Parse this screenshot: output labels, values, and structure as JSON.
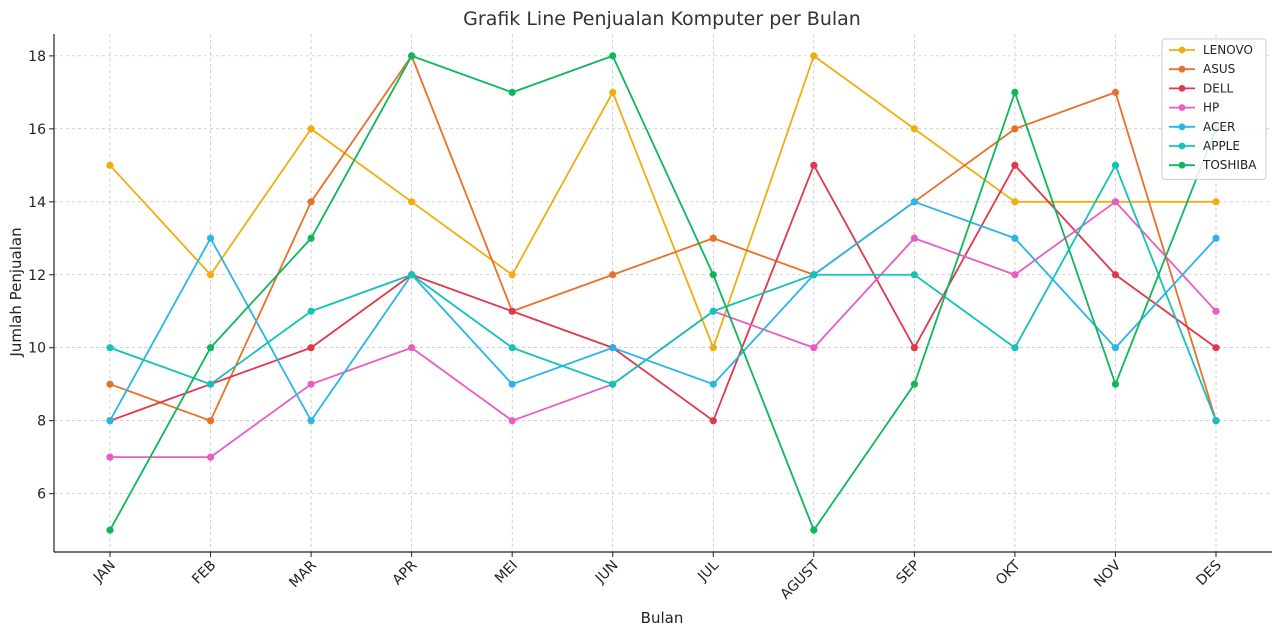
{
  "chart_data": {
    "type": "line",
    "title": "Grafik Line Penjualan Komputer per Bulan",
    "xlabel": "Bulan",
    "ylabel": "Jumlah Penjualan",
    "categories": [
      "JAN",
      "FEB",
      "MAR",
      "APR",
      "MEI",
      "JUN",
      "JUL",
      "AGUST",
      "SEP",
      "OKT",
      "NOV",
      "DES"
    ],
    "ylim": [
      4.4,
      18.6
    ],
    "yticks": [
      6,
      8,
      10,
      12,
      14,
      16,
      18
    ],
    "grid": true,
    "legend_position": "top-right",
    "series": [
      {
        "name": "LENOVO",
        "color": "#f0ad0f",
        "values": [
          15,
          12,
          16,
          14,
          12,
          17,
          10,
          18,
          16,
          14,
          14,
          14
        ]
      },
      {
        "name": "ASUS",
        "color": "#e8702a",
        "values": [
          9,
          8,
          14,
          18,
          11,
          12,
          13,
          12,
          14,
          16,
          17,
          8
        ]
      },
      {
        "name": "DELL",
        "color": "#e0384e",
        "values": [
          8,
          9,
          10,
          12,
          11,
          10,
          8,
          15,
          10,
          15,
          12,
          10
        ]
      },
      {
        "name": "HP",
        "color": "#e75cc6",
        "values": [
          7,
          7,
          9,
          10,
          8,
          9,
          11,
          10,
          13,
          12,
          14,
          11
        ]
      },
      {
        "name": "ACER",
        "color": "#2bb5e6",
        "values": [
          8,
          13,
          8,
          12,
          9,
          10,
          9,
          12,
          14,
          13,
          10,
          13
        ]
      },
      {
        "name": "APPLE",
        "color": "#14c2b8",
        "values": [
          10,
          9,
          11,
          12,
          10,
          9,
          11,
          12,
          12,
          10,
          15,
          8
        ]
      },
      {
        "name": "TOSHIBA",
        "color": "#0db85c",
        "values": [
          5,
          10,
          13,
          18,
          17,
          18,
          12,
          5,
          9,
          17,
          9,
          16
        ]
      }
    ]
  }
}
